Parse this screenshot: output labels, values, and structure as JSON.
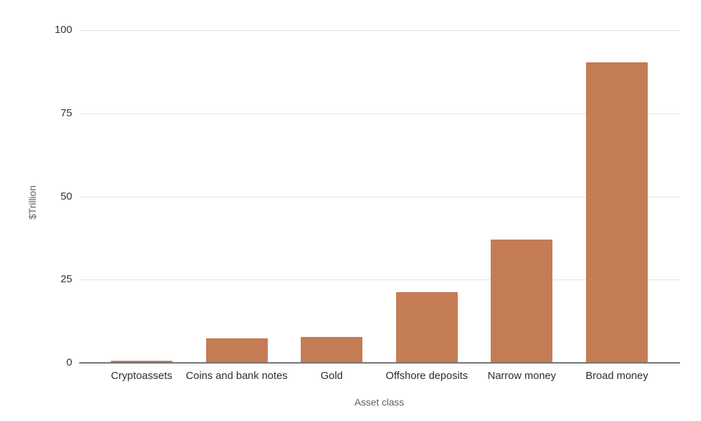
{
  "chart_data": {
    "type": "bar",
    "title": "",
    "categories": [
      "Cryptoassets",
      "Coins and bank notes",
      "Gold",
      "Offshore deposits",
      "Narrow money",
      "Broad money"
    ],
    "values": [
      0.5,
      7.2,
      7.6,
      21,
      36.8,
      90
    ],
    "xlabel": "Asset class",
    "ylabel": "$Trillion",
    "yticks": [
      0,
      25,
      50,
      75,
      100
    ],
    "ylim": [
      0,
      100
    ],
    "grid": true,
    "legend": false,
    "bar_color": "#c47c54",
    "axis_line_color": "#757575",
    "gridline_color": "#e3e3e3",
    "tick_text_color": "#333333",
    "category_text_color": "#2d2d2d",
    "axis_title_color": "#5e5e5e"
  }
}
